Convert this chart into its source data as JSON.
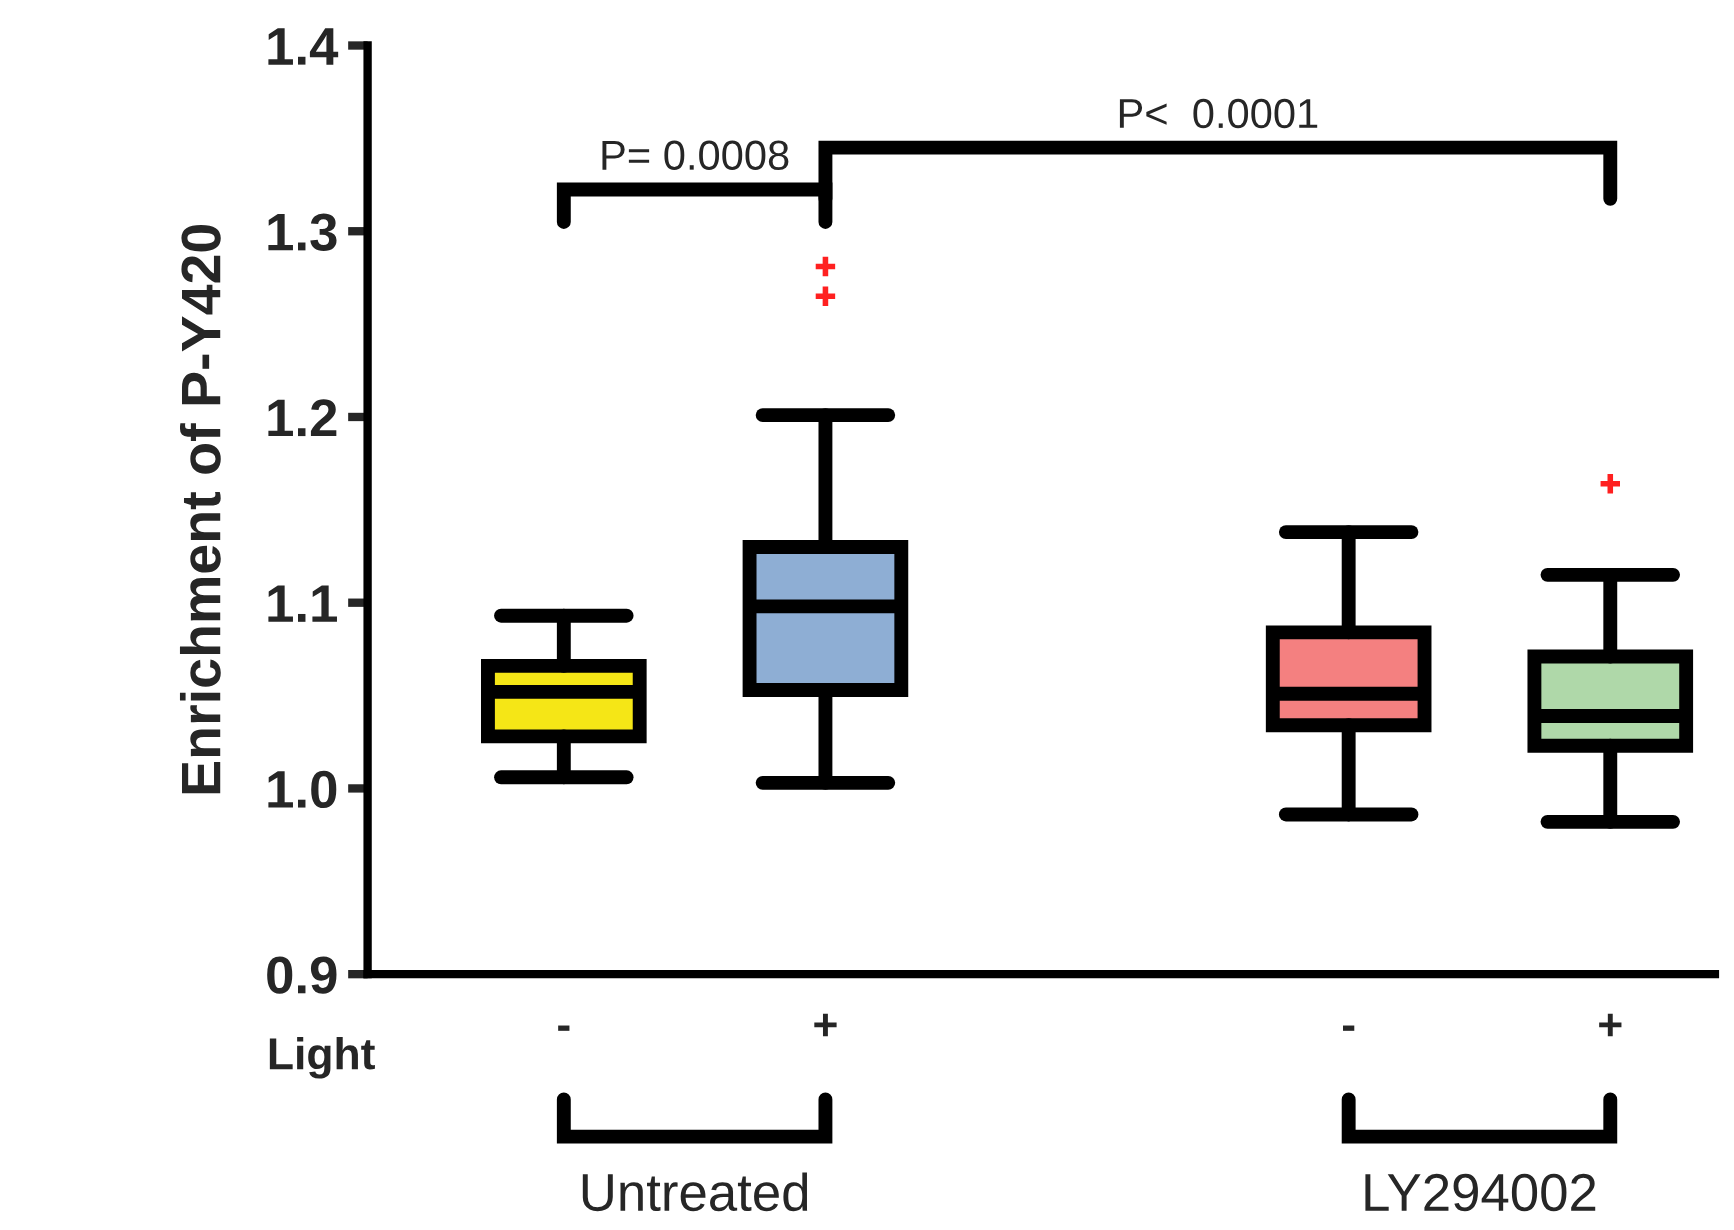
{
  "chart_data": {
    "type": "box",
    "ylabel": "Enrichment of P-Y420",
    "categories": [
      "-",
      "+",
      "-",
      "+"
    ],
    "colors": [
      "#f5e616",
      "#8eaed4",
      "#f48080",
      "#afd8a9"
    ],
    "boxes": [
      {
        "low": 1.006,
        "q1": 1.028,
        "median": 1.052,
        "q3": 1.066,
        "high": 1.093
      },
      {
        "low": 1.003,
        "q1": 1.053,
        "median": 1.098,
        "q3": 1.13,
        "high": 1.201,
        "outliers": [
          1.281,
          1.265
        ]
      },
      {
        "low": 0.986,
        "q1": 1.034,
        "median": 1.051,
        "q3": 1.084,
        "high": 1.138
      },
      {
        "low": 0.982,
        "q1": 1.023,
        "median": 1.039,
        "q3": 1.071,
        "high": 1.115,
        "outliers": [
          1.164
        ]
      }
    ],
    "ylim": [
      0.9,
      1.4
    ],
    "yticks": [
      {
        "value": 0.9,
        "label": "0.9"
      },
      {
        "value": 1.0,
        "label": "1.0"
      },
      {
        "value": 1.1,
        "label": "1.1"
      },
      {
        "value": 1.2,
        "label": "1.2"
      },
      {
        "value": 1.3,
        "label": "1.3"
      },
      {
        "value": 1.4,
        "label": "1.4"
      }
    ],
    "grid": false,
    "annotations": [
      "Light",
      "Untreated",
      "LY294002",
      "P= 0.0008",
      "P<  0.0001"
    ]
  }
}
